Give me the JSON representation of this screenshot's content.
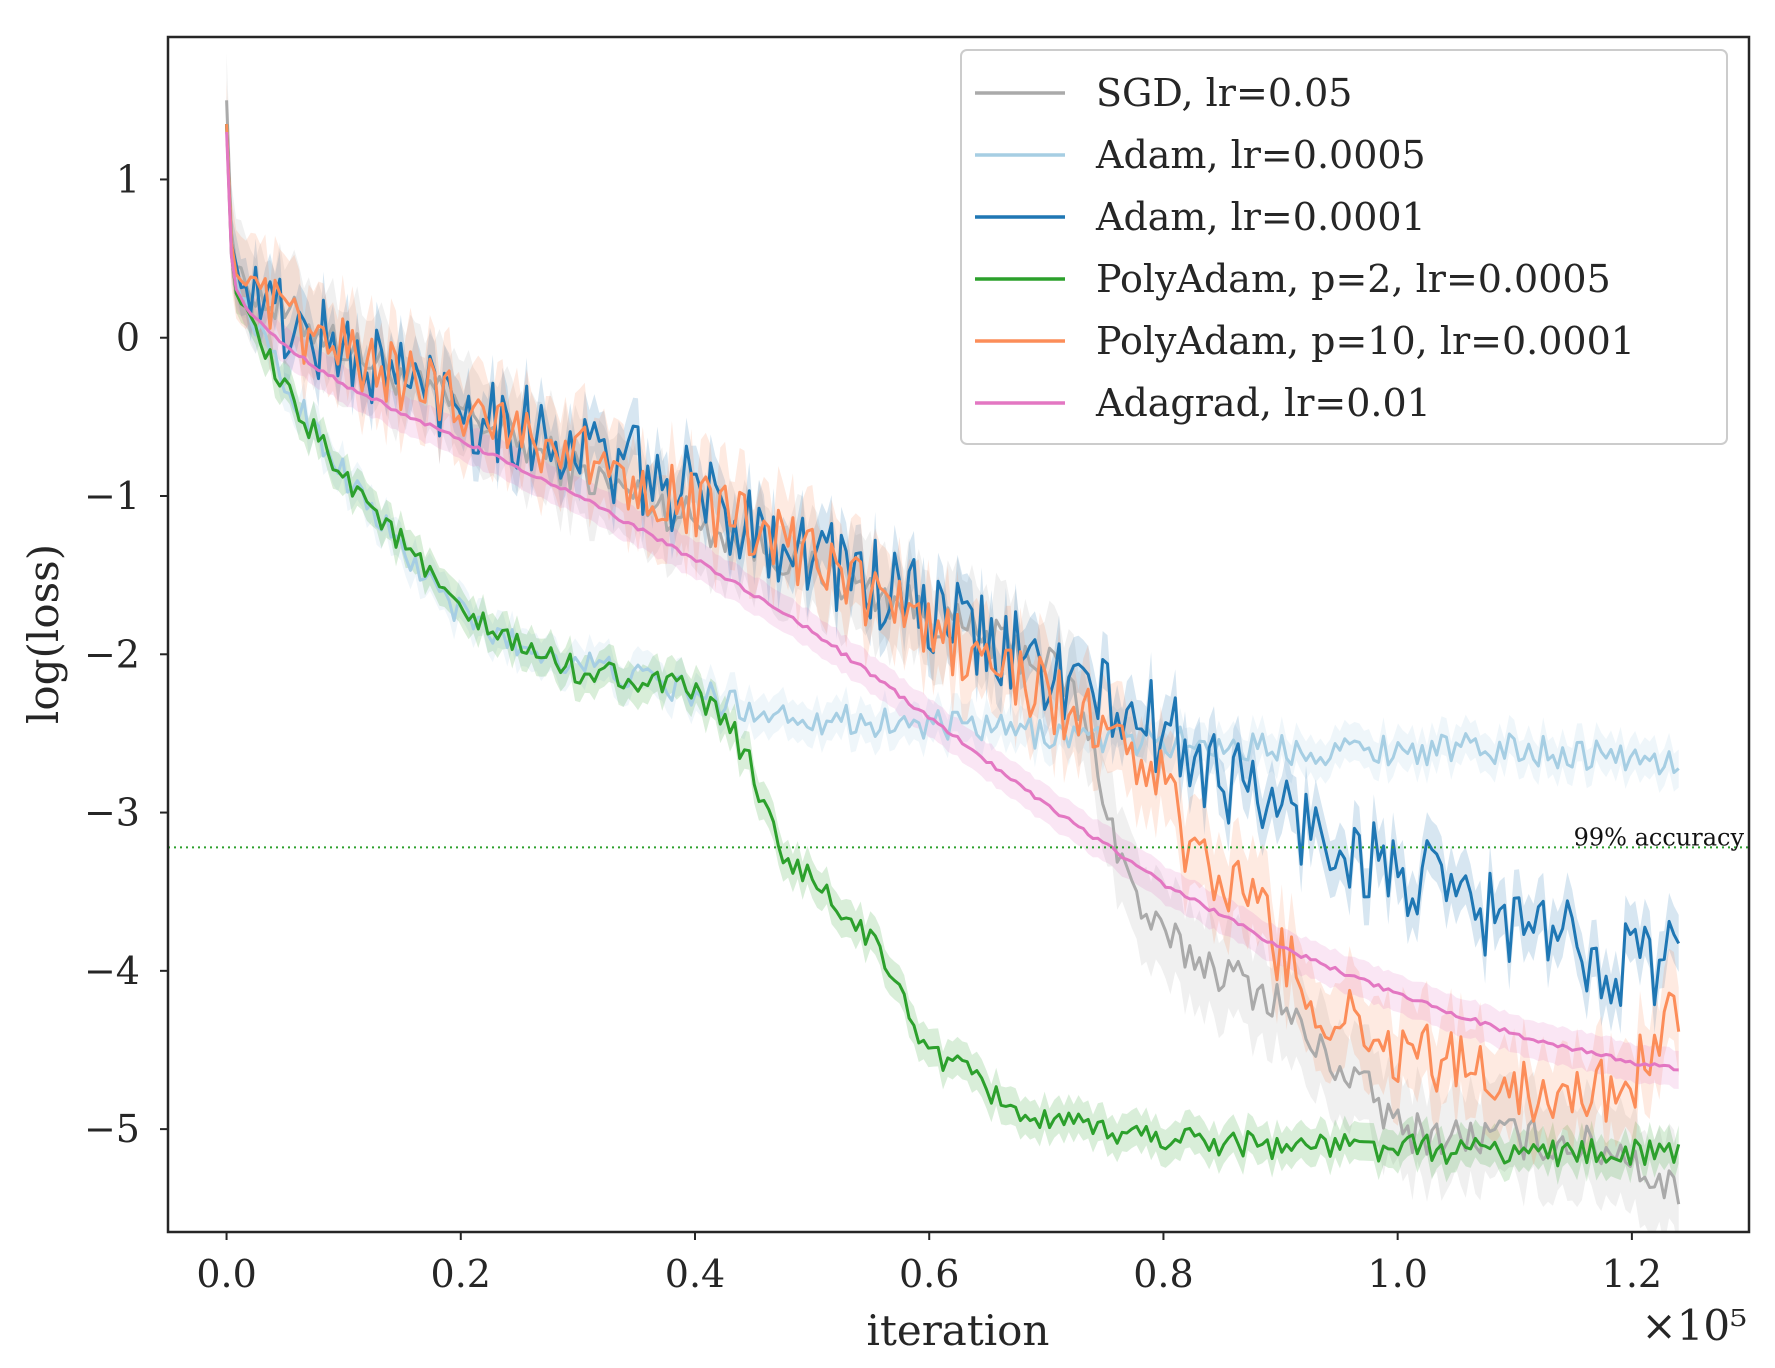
{
  "chart_data": {
    "type": "line",
    "title": "",
    "xlabel": "iteration",
    "ylabel": "log(loss)",
    "x_scale_label": "×10⁵",
    "xlim": [
      -0.05,
      1.3
    ],
    "ylim": [
      -5.65,
      1.9
    ],
    "x_ticks": [
      0.0,
      0.2,
      0.4,
      0.6,
      0.8,
      1.0,
      1.2
    ],
    "x_tick_labels": [
      "0.0",
      "0.2",
      "0.4",
      "0.6",
      "0.8",
      "1.0",
      "1.2"
    ],
    "y_ticks": [
      1,
      0,
      -1,
      -2,
      -3,
      -4,
      -5
    ],
    "y_tick_labels": [
      "1",
      "0",
      "−1",
      "−2",
      "−3",
      "−4",
      "−5"
    ],
    "grid": false,
    "legend_position": "top-right",
    "annotation": {
      "text": "99% accuracy",
      "y": -3.22,
      "color": "#2ca02c",
      "style": "dotted"
    },
    "series": [
      {
        "name": "SGD, lr=0.05",
        "color": "#aaaaaa",
        "x": [
          0,
          0.005,
          0.02,
          0.05,
          0.08,
          0.1,
          0.15,
          0.2,
          0.25,
          0.3,
          0.35,
          0.4,
          0.45,
          0.5,
          0.55,
          0.6,
          0.65,
          0.7,
          0.72,
          0.74,
          0.76,
          0.78,
          0.8,
          0.85,
          0.9,
          0.93,
          0.95,
          0.98,
          1.0,
          1.05,
          1.1,
          1.15,
          1.2,
          1.22,
          1.24
        ],
        "y": [
          1.5,
          0.5,
          0.3,
          0.15,
          0.05,
          -0.05,
          -0.25,
          -0.45,
          -0.65,
          -0.85,
          -1.0,
          -1.15,
          -1.3,
          -1.45,
          -1.6,
          -1.75,
          -1.9,
          -2.05,
          -2.2,
          -2.6,
          -3.2,
          -3.6,
          -3.8,
          -4.0,
          -4.2,
          -4.5,
          -4.6,
          -4.8,
          -5.0,
          -5.05,
          -5.05,
          -5.1,
          -5.15,
          -5.35,
          -5.38
        ],
        "noise": 0.14,
        "band": 0.3
      },
      {
        "name": "Adam, lr=0.0005",
        "color": "#a6cee3",
        "x": [
          0,
          0.005,
          0.02,
          0.05,
          0.1,
          0.15,
          0.2,
          0.25,
          0.3,
          0.35,
          0.4,
          0.45,
          0.5,
          0.6,
          0.7,
          0.8,
          0.9,
          1.0,
          1.1,
          1.2,
          1.24
        ],
        "y": [
          1.35,
          0.4,
          0.15,
          -0.3,
          -0.85,
          -1.35,
          -1.75,
          -1.95,
          -2.05,
          -2.15,
          -2.25,
          -2.35,
          -2.4,
          -2.45,
          -2.5,
          -2.55,
          -2.6,
          -2.6,
          -2.6,
          -2.65,
          -2.7
        ],
        "noise": 0.1,
        "band": 0.12
      },
      {
        "name": "Adam, lr=0.0001",
        "color": "#1f77b4",
        "x": [
          0,
          0.005,
          0.02,
          0.05,
          0.1,
          0.2,
          0.3,
          0.4,
          0.5,
          0.6,
          0.7,
          0.75,
          0.8,
          0.85,
          0.9,
          0.95,
          1.0,
          1.05,
          1.1,
          1.15,
          1.2,
          1.24
        ],
        "y": [
          1.35,
          0.45,
          0.3,
          0.1,
          -0.1,
          -0.4,
          -0.7,
          -1.0,
          -1.35,
          -1.75,
          -2.1,
          -2.3,
          -2.5,
          -2.75,
          -3.0,
          -3.2,
          -3.4,
          -3.55,
          -3.7,
          -3.85,
          -3.95,
          -3.9
        ],
        "noise": 0.3,
        "band": 0.18
      },
      {
        "name": "PolyAdam, p=2, lr=0.0005",
        "color": "#2ca02c",
        "x": [
          0,
          0.005,
          0.02,
          0.05,
          0.1,
          0.15,
          0.2,
          0.25,
          0.3,
          0.35,
          0.4,
          0.43,
          0.45,
          0.47,
          0.5,
          0.55,
          0.6,
          0.65,
          0.68,
          0.7,
          0.8,
          0.9,
          1.0,
          1.1,
          1.2,
          1.24
        ],
        "y": [
          1.35,
          0.35,
          0.1,
          -0.35,
          -0.85,
          -1.3,
          -1.75,
          -1.95,
          -2.1,
          -2.15,
          -2.25,
          -2.45,
          -2.75,
          -3.2,
          -3.45,
          -3.8,
          -4.5,
          -4.75,
          -4.9,
          -4.97,
          -5.05,
          -5.1,
          -5.12,
          -5.14,
          -5.15,
          -5.16
        ],
        "noise": 0.09,
        "band": 0.12
      },
      {
        "name": "PolyAdam, p=10, lr=0.0001",
        "color": "#fc8d59",
        "x": [
          0,
          0.005,
          0.02,
          0.05,
          0.1,
          0.2,
          0.3,
          0.4,
          0.5,
          0.6,
          0.7,
          0.75,
          0.8,
          0.82,
          0.85,
          0.88,
          0.9,
          0.93,
          0.95,
          1.0,
          1.05,
          1.1,
          1.15,
          1.2,
          1.24
        ],
        "y": [
          1.35,
          0.45,
          0.3,
          0.1,
          -0.1,
          -0.4,
          -0.75,
          -1.05,
          -1.4,
          -1.85,
          -2.25,
          -2.5,
          -2.8,
          -3.2,
          -3.5,
          -3.5,
          -3.9,
          -4.2,
          -4.3,
          -4.5,
          -4.6,
          -4.7,
          -4.8,
          -4.7,
          -4.2
        ],
        "noise": 0.22,
        "band": 0.28
      },
      {
        "name": "Adagrad, lr=0.01",
        "color": "#e377c2",
        "x": [
          0,
          0.005,
          0.02,
          0.05,
          0.1,
          0.2,
          0.3,
          0.4,
          0.5,
          0.6,
          0.7,
          0.8,
          0.9,
          1.0,
          1.1,
          1.2,
          1.24
        ],
        "y": [
          1.3,
          0.35,
          0.15,
          -0.05,
          -0.3,
          -0.65,
          -1.0,
          -1.4,
          -1.85,
          -2.4,
          -2.95,
          -3.45,
          -3.85,
          -4.15,
          -4.4,
          -4.58,
          -4.62
        ],
        "noise": 0.015,
        "band": 0.12
      }
    ]
  }
}
